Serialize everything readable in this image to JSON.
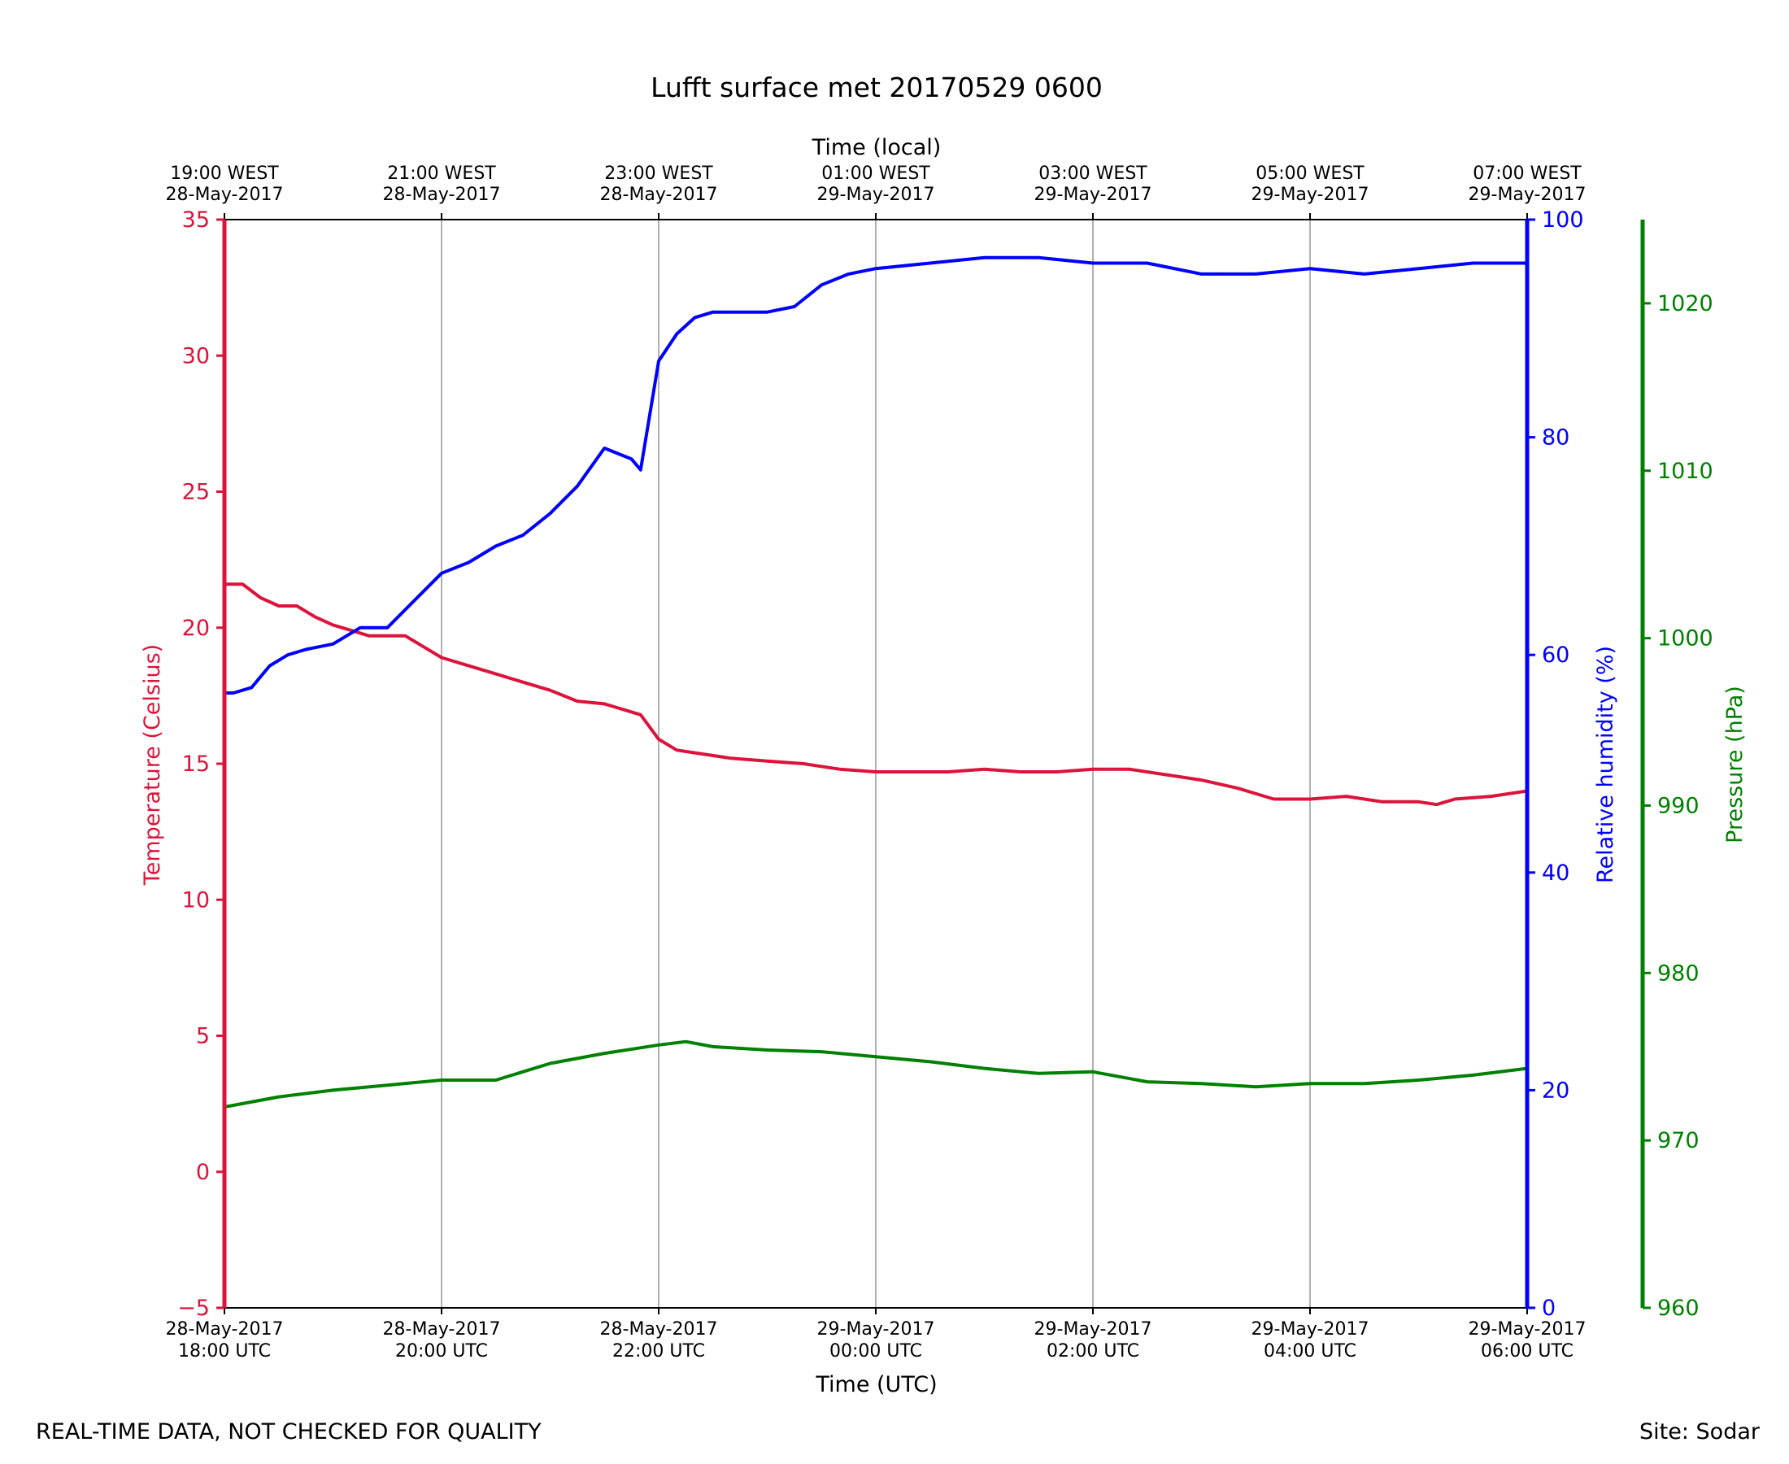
{
  "chart_data": {
    "type": "line",
    "title": "Lufft surface met 20170529 0600",
    "xlabel": "Time (UTC)",
    "x2label": "Time (local)",
    "x_ticks_utc": [
      [
        "28-May-2017",
        "18:00 UTC"
      ],
      [
        "28-May-2017",
        "20:00 UTC"
      ],
      [
        "28-May-2017",
        "22:00 UTC"
      ],
      [
        "29-May-2017",
        "00:00 UTC"
      ],
      [
        "29-May-2017",
        "02:00 UTC"
      ],
      [
        "29-May-2017",
        "04:00 UTC"
      ],
      [
        "29-May-2017",
        "06:00 UTC"
      ]
    ],
    "x_ticks_local": [
      [
        "19:00 WEST",
        "28-May-2017"
      ],
      [
        "21:00 WEST",
        "28-May-2017"
      ],
      [
        "23:00 WEST",
        "28-May-2017"
      ],
      [
        "01:00 WEST",
        "29-May-2017"
      ],
      [
        "03:00 WEST",
        "29-May-2017"
      ],
      [
        "05:00 WEST",
        "29-May-2017"
      ],
      [
        "07:00 WEST",
        "29-May-2017"
      ]
    ],
    "x_range_utc": [
      "2017-05-28 18:00",
      "2017-05-29 06:00"
    ],
    "vertical_grid": true,
    "axes": {
      "temperature": {
        "label": "Temperature (Celsius)",
        "ylim": [
          -5,
          35
        ],
        "ticks": [
          -5,
          0,
          5,
          10,
          15,
          20,
          25,
          30,
          35
        ],
        "color": "#dc143c",
        "side": "left"
      },
      "humidity": {
        "label": "Relative humidity (%)",
        "ylim": [
          0,
          100
        ],
        "ticks": [
          0,
          20,
          40,
          60,
          80,
          100
        ],
        "color": "#0000ff",
        "side": "right"
      },
      "pressure": {
        "label": "Pressure (hPa)",
        "ylim": [
          960,
          1025
        ],
        "ticks": [
          960,
          970,
          980,
          990,
          1000,
          1010,
          1020
        ],
        "color": "#008000",
        "side": "right-offset"
      }
    },
    "series": [
      {
        "axis": "temperature",
        "x": [
          "2017-05-28 18:00",
          "2017-05-28 18:10",
          "2017-05-28 18:20",
          "2017-05-28 18:30",
          "2017-05-28 18:40",
          "2017-05-28 18:50",
          "2017-05-28 19:00",
          "2017-05-28 19:10",
          "2017-05-28 19:20",
          "2017-05-28 19:30",
          "2017-05-28 19:40",
          "2017-05-28 19:50",
          "2017-05-28 20:00",
          "2017-05-28 20:15",
          "2017-05-28 20:30",
          "2017-05-28 20:45",
          "2017-05-28 21:00",
          "2017-05-28 21:15",
          "2017-05-28 21:30",
          "2017-05-28 21:45",
          "2017-05-28 21:50",
          "2017-05-28 22:00",
          "2017-05-28 22:10",
          "2017-05-28 22:20",
          "2017-05-28 22:40",
          "2017-05-28 23:00",
          "2017-05-28 23:20",
          "2017-05-28 23:40",
          "2017-05-29 00:00",
          "2017-05-29 00:20",
          "2017-05-29 00:40",
          "2017-05-29 01:00",
          "2017-05-29 01:20",
          "2017-05-29 01:40",
          "2017-05-29 02:00",
          "2017-05-29 02:20",
          "2017-05-29 02:40",
          "2017-05-29 03:00",
          "2017-05-29 03:20",
          "2017-05-29 03:40",
          "2017-05-29 04:00",
          "2017-05-29 04:20",
          "2017-05-29 04:40",
          "2017-05-29 05:00",
          "2017-05-29 05:10",
          "2017-05-29 05:20",
          "2017-05-29 05:40",
          "2017-05-29 06:00"
        ],
        "values": [
          21.6,
          21.6,
          21.1,
          20.8,
          20.8,
          20.4,
          20.1,
          19.9,
          19.7,
          19.7,
          19.7,
          19.3,
          18.9,
          18.6,
          18.3,
          18.0,
          17.7,
          17.3,
          17.2,
          16.9,
          16.8,
          15.9,
          15.5,
          15.4,
          15.2,
          15.1,
          15.0,
          14.8,
          14.7,
          14.7,
          14.7,
          14.8,
          14.7,
          14.7,
          14.8,
          14.8,
          14.6,
          14.4,
          14.1,
          13.7,
          13.7,
          13.8,
          13.6,
          13.6,
          13.5,
          13.7,
          13.8,
          14.0
        ]
      },
      {
        "axis": "humidity",
        "x": [
          "2017-05-28 18:00",
          "2017-05-28 18:05",
          "2017-05-28 18:15",
          "2017-05-28 18:25",
          "2017-05-28 18:35",
          "2017-05-28 18:45",
          "2017-05-28 19:00",
          "2017-05-28 19:15",
          "2017-05-28 19:30",
          "2017-05-28 19:45",
          "2017-05-28 20:00",
          "2017-05-28 20:15",
          "2017-05-28 20:30",
          "2017-05-28 20:45",
          "2017-05-28 21:00",
          "2017-05-28 21:15",
          "2017-05-28 21:30",
          "2017-05-28 21:45",
          "2017-05-28 21:50",
          "2017-05-28 22:00",
          "2017-05-28 22:10",
          "2017-05-28 22:20",
          "2017-05-28 22:30",
          "2017-05-28 22:45",
          "2017-05-28 23:00",
          "2017-05-28 23:15",
          "2017-05-28 23:30",
          "2017-05-28 23:45",
          "2017-05-29 00:00",
          "2017-05-29 00:30",
          "2017-05-29 01:00",
          "2017-05-29 01:30",
          "2017-05-29 02:00",
          "2017-05-29 02:30",
          "2017-05-29 03:00",
          "2017-05-29 03:30",
          "2017-05-29 04:00",
          "2017-05-29 04:30",
          "2017-05-29 05:00",
          "2017-05-29 05:30",
          "2017-05-29 06:00"
        ],
        "values": [
          56.5,
          56.5,
          57.0,
          59.0,
          60.0,
          60.5,
          61.0,
          62.5,
          62.5,
          65.0,
          67.5,
          68.5,
          70.0,
          71.0,
          73.0,
          75.5,
          79.0,
          78.0,
          77.0,
          87.0,
          89.5,
          91.0,
          91.5,
          91.5,
          91.5,
          92.0,
          94.0,
          95.0,
          95.5,
          96.0,
          96.5,
          96.5,
          96.0,
          96.0,
          95.0,
          95.0,
          95.5,
          95.0,
          95.5,
          96.0,
          96.0
        ]
      },
      {
        "axis": "pressure",
        "x": [
          "2017-05-28 18:00",
          "2017-05-28 18:30",
          "2017-05-28 19:00",
          "2017-05-28 19:30",
          "2017-05-28 20:00",
          "2017-05-28 20:30",
          "2017-05-28 21:00",
          "2017-05-28 21:30",
          "2017-05-28 22:00",
          "2017-05-28 22:15",
          "2017-05-28 22:30",
          "2017-05-28 23:00",
          "2017-05-28 23:30",
          "2017-05-29 00:00",
          "2017-05-29 00:30",
          "2017-05-29 01:00",
          "2017-05-29 01:30",
          "2017-05-29 02:00",
          "2017-05-29 02:30",
          "2017-05-29 03:00",
          "2017-05-29 03:30",
          "2017-05-29 04:00",
          "2017-05-29 04:30",
          "2017-05-29 05:00",
          "2017-05-29 05:30",
          "2017-05-29 06:00"
        ],
        "values": [
          972.0,
          972.6,
          973.0,
          973.3,
          973.6,
          973.6,
          974.6,
          975.2,
          975.7,
          975.9,
          975.6,
          975.4,
          975.3,
          975.0,
          974.7,
          974.3,
          974.0,
          974.1,
          973.5,
          973.4,
          973.2,
          973.4,
          973.4,
          973.6,
          973.9,
          974.3
        ]
      }
    ]
  },
  "footer": {
    "left_note": "REAL-TIME DATA, NOT CHECKED FOR QUALITY",
    "right_note": "Site: Sodar"
  }
}
